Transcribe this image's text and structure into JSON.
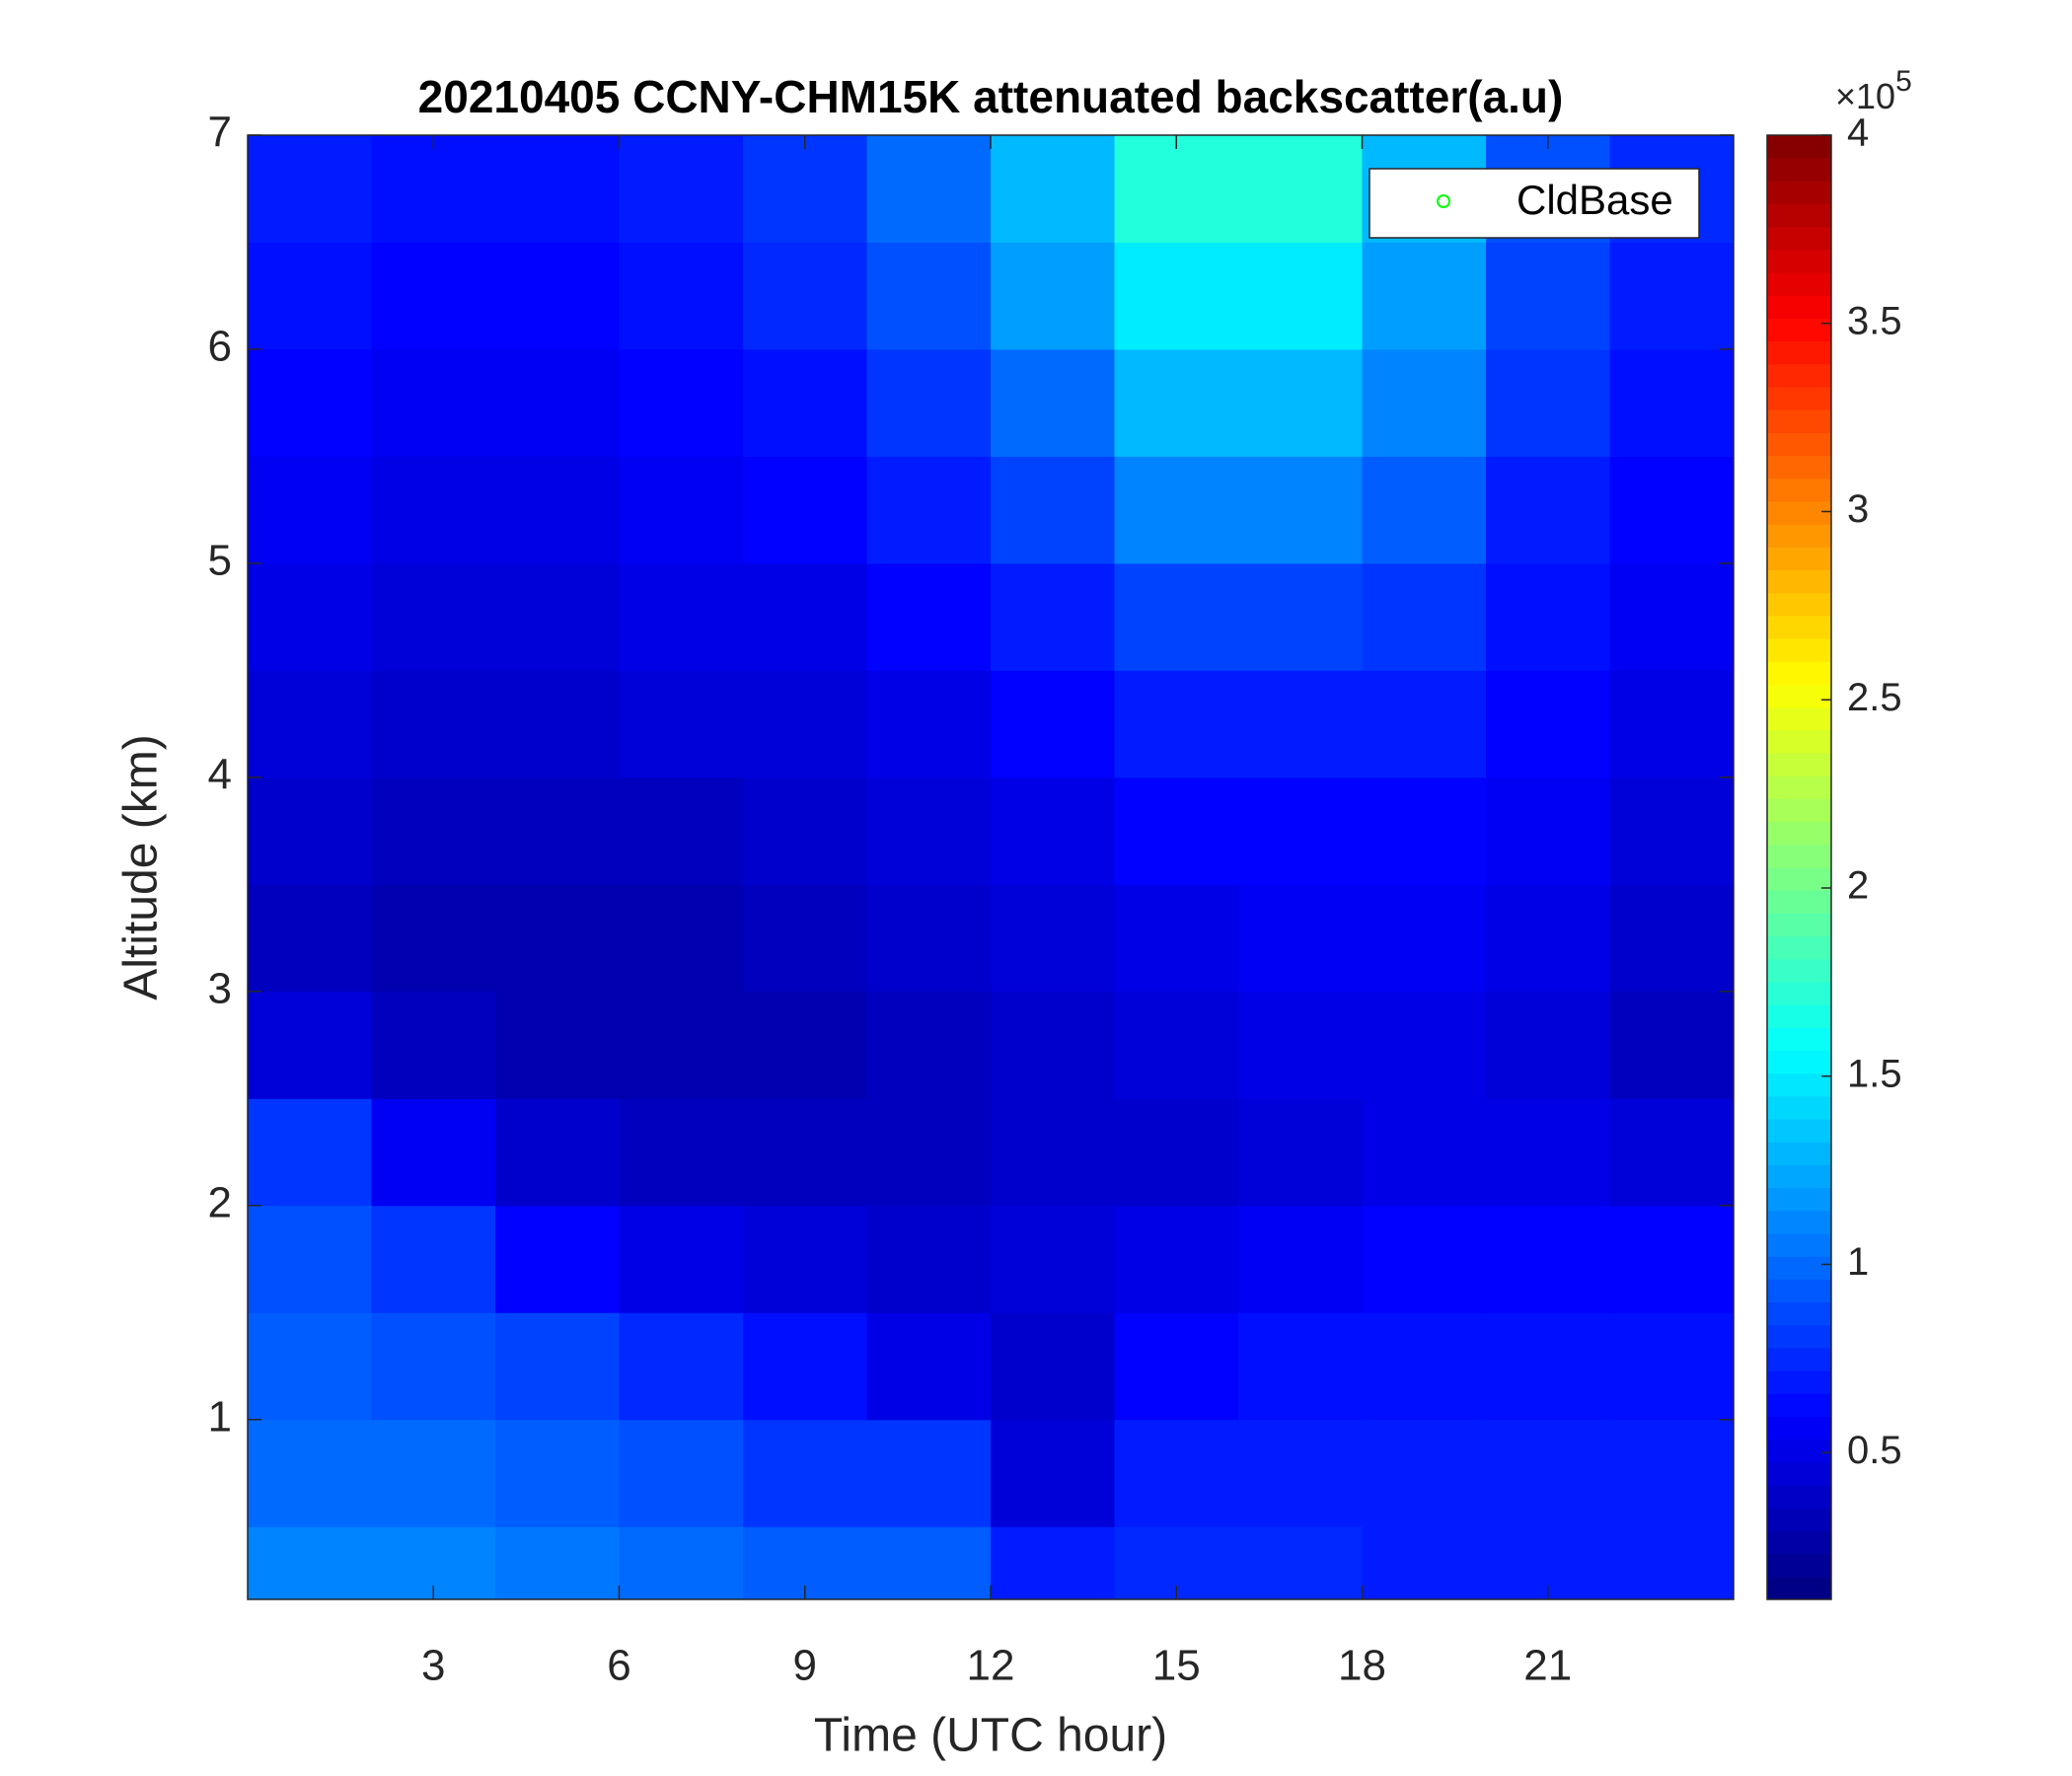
{
  "chart_data": {
    "type": "heatmap",
    "title": "20210405 CCNY-CHM15K attenuated backscatter(a.u)",
    "x_label": "Time (UTC hour)",
    "y_label": "Altitude (km)",
    "xlim": [
      0,
      24
    ],
    "xticks": [
      3,
      6,
      9,
      12,
      15,
      18,
      21
    ],
    "ylim": [
      0.16,
      7
    ],
    "yticks": [
      1,
      2,
      3,
      4,
      5,
      6,
      7
    ],
    "x_edges": [
      0,
      2,
      4,
      6,
      8,
      10,
      12,
      14,
      16,
      18,
      20,
      22,
      24
    ],
    "y_edges": [
      0.16,
      0.5,
      1,
      1.5,
      2,
      2.5,
      3,
      3.5,
      4,
      4.5,
      5,
      5.5,
      6,
      6.5,
      7
    ],
    "z": [
      [
        1.1,
        1.1,
        1.05,
        1.0,
        0.95,
        0.95,
        0.7,
        0.75,
        0.75,
        0.7,
        0.7,
        0.7
      ],
      [
        1.0,
        1.0,
        0.95,
        0.9,
        0.8,
        0.8,
        0.45,
        0.7,
        0.7,
        0.7,
        0.7,
        0.7
      ],
      [
        0.95,
        0.9,
        0.85,
        0.75,
        0.65,
        0.5,
        0.4,
        0.6,
        0.65,
        0.65,
        0.65,
        0.65
      ],
      [
        0.9,
        0.8,
        0.6,
        0.5,
        0.45,
        0.4,
        0.45,
        0.5,
        0.55,
        0.6,
        0.6,
        0.6
      ],
      [
        0.8,
        0.55,
        0.4,
        0.35,
        0.35,
        0.35,
        0.4,
        0.4,
        0.45,
        0.5,
        0.5,
        0.45
      ],
      [
        0.45,
        0.35,
        0.3,
        0.3,
        0.3,
        0.35,
        0.4,
        0.45,
        0.5,
        0.5,
        0.45,
        0.35
      ],
      [
        0.35,
        0.3,
        0.3,
        0.3,
        0.35,
        0.4,
        0.45,
        0.5,
        0.55,
        0.55,
        0.5,
        0.4
      ],
      [
        0.4,
        0.35,
        0.35,
        0.35,
        0.4,
        0.45,
        0.5,
        0.6,
        0.6,
        0.6,
        0.55,
        0.45
      ],
      [
        0.45,
        0.4,
        0.4,
        0.45,
        0.45,
        0.5,
        0.6,
        0.7,
        0.7,
        0.7,
        0.6,
        0.5
      ],
      [
        0.5,
        0.45,
        0.45,
        0.5,
        0.5,
        0.6,
        0.7,
        0.85,
        0.85,
        0.8,
        0.65,
        0.55
      ],
      [
        0.55,
        0.5,
        0.5,
        0.55,
        0.6,
        0.7,
        0.85,
        1.1,
        1.1,
        0.95,
        0.7,
        0.6
      ],
      [
        0.6,
        0.55,
        0.55,
        0.6,
        0.65,
        0.8,
        1.0,
        1.3,
        1.3,
        1.1,
        0.8,
        0.65
      ],
      [
        0.65,
        0.6,
        0.6,
        0.65,
        0.75,
        0.9,
        1.2,
        1.5,
        1.5,
        1.2,
        0.85,
        0.7
      ],
      [
        0.7,
        0.65,
        0.65,
        0.7,
        0.8,
        1.0,
        1.3,
        1.7,
        1.7,
        1.3,
        0.9,
        0.75
      ]
    ],
    "colormap": "jet",
    "clim": [
      0.11,
      4
    ],
    "cticks": [
      0.5,
      1,
      1.5,
      2,
      2.5,
      3,
      3.5,
      4
    ],
    "colorbar_multiplier": "×10",
    "colorbar_exponent": "5",
    "series": [
      {
        "name": "CldBase",
        "color": "#00ff00",
        "marker": "o",
        "values": []
      }
    ],
    "legend": "northeast"
  }
}
